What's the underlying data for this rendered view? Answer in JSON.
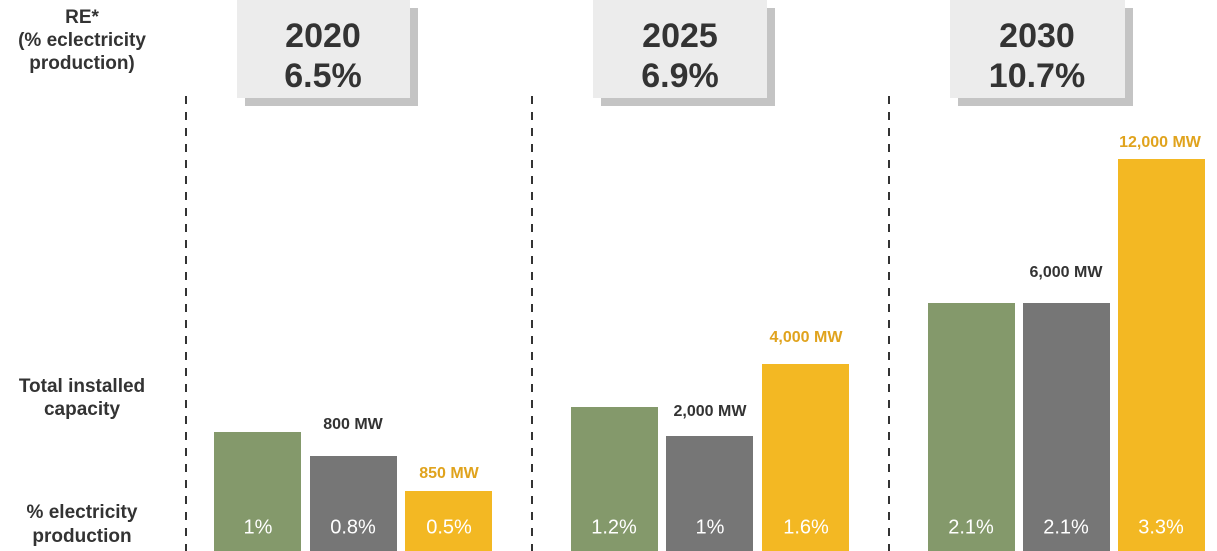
{
  "row_labels": {
    "re": [
      "RE*",
      "(% eclectricity",
      "production)"
    ],
    "capacity": [
      "Total installed",
      "capacity"
    ],
    "share": [
      "% electricity",
      "production"
    ]
  },
  "periods": [
    {
      "year": "2020",
      "re": "6.5%",
      "bars": [
        {
          "share": "1%"
        },
        {
          "capacity": "800 MW",
          "share": "0.8%"
        },
        {
          "capacity": "850 MW",
          "share": "0.5%"
        }
      ]
    },
    {
      "year": "2025",
      "re": "6.9%",
      "bars": [
        {
          "share": "1.2%"
        },
        {
          "capacity": "2,000 MW",
          "share": "1%"
        },
        {
          "capacity": "4,000 MW",
          "share": "1.6%"
        }
      ]
    },
    {
      "year": "2030",
      "re": "10.7%",
      "bars": [
        {
          "share": "2.1%"
        },
        {
          "capacity": "6,000 MW",
          "share": "2.1%"
        },
        {
          "capacity": "12,000 MW",
          "share": "3.3%"
        }
      ]
    }
  ]
}
